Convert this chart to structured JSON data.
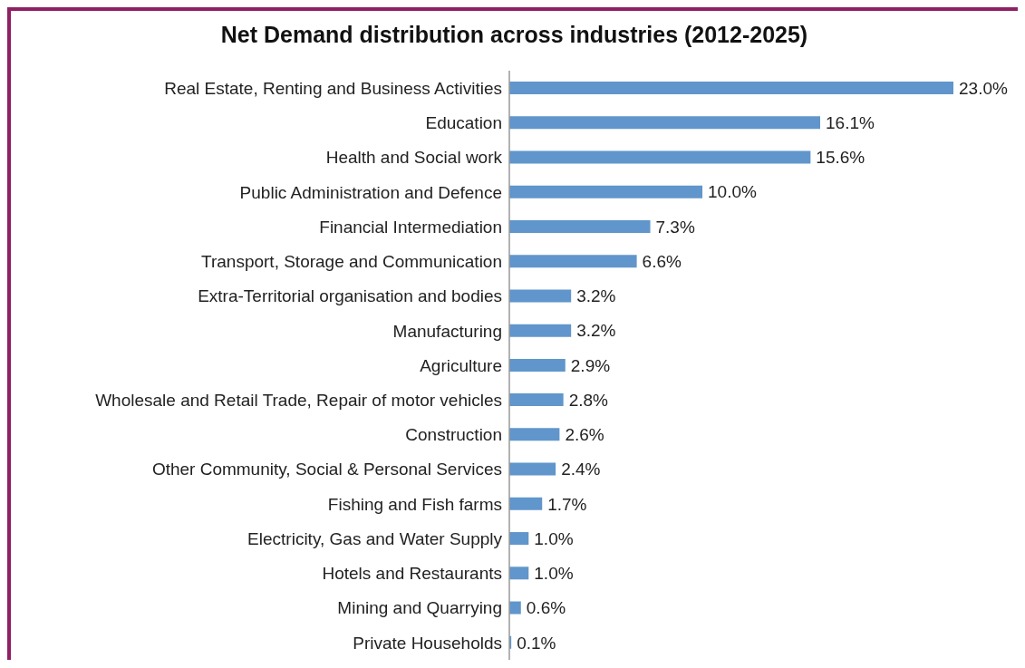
{
  "chart_data": {
    "type": "bar",
    "orientation": "horizontal",
    "title": "Net Demand distribution across industries (2012-2025)",
    "categories": [
      "Real Estate, Renting and Business Activities",
      "Education",
      "Health and Social work",
      "Public Administration and Defence",
      "Financial Intermediation",
      "Transport, Storage and Communication",
      "Extra-Territorial organisation and bodies",
      "Manufacturing",
      "Agriculture",
      "Wholesale and Retail Trade, Repair of motor vehicles",
      "Construction",
      "Other Community, Social & Personal Services",
      "Fishing and Fish farms",
      "Electricity, Gas and Water Supply",
      "Hotels and Restaurants",
      "Mining and Quarrying",
      "Private Households"
    ],
    "values": [
      23.0,
      16.1,
      15.6,
      10.0,
      7.3,
      6.6,
      3.2,
      3.2,
      2.9,
      2.8,
      2.6,
      2.4,
      1.7,
      1.0,
      1.0,
      0.6,
      0.1
    ],
    "value_labels": [
      "23.0%",
      "16.1%",
      "15.6%",
      "10.0%",
      "7.3%",
      "6.6%",
      "3.2%",
      "3.2%",
      "2.9%",
      "2.8%",
      "2.6%",
      "2.4%",
      "1.7%",
      "1.0%",
      "1.0%",
      "0.6%",
      "0.1%"
    ],
    "color": "#6096cb",
    "grid": false,
    "legend": false
  }
}
